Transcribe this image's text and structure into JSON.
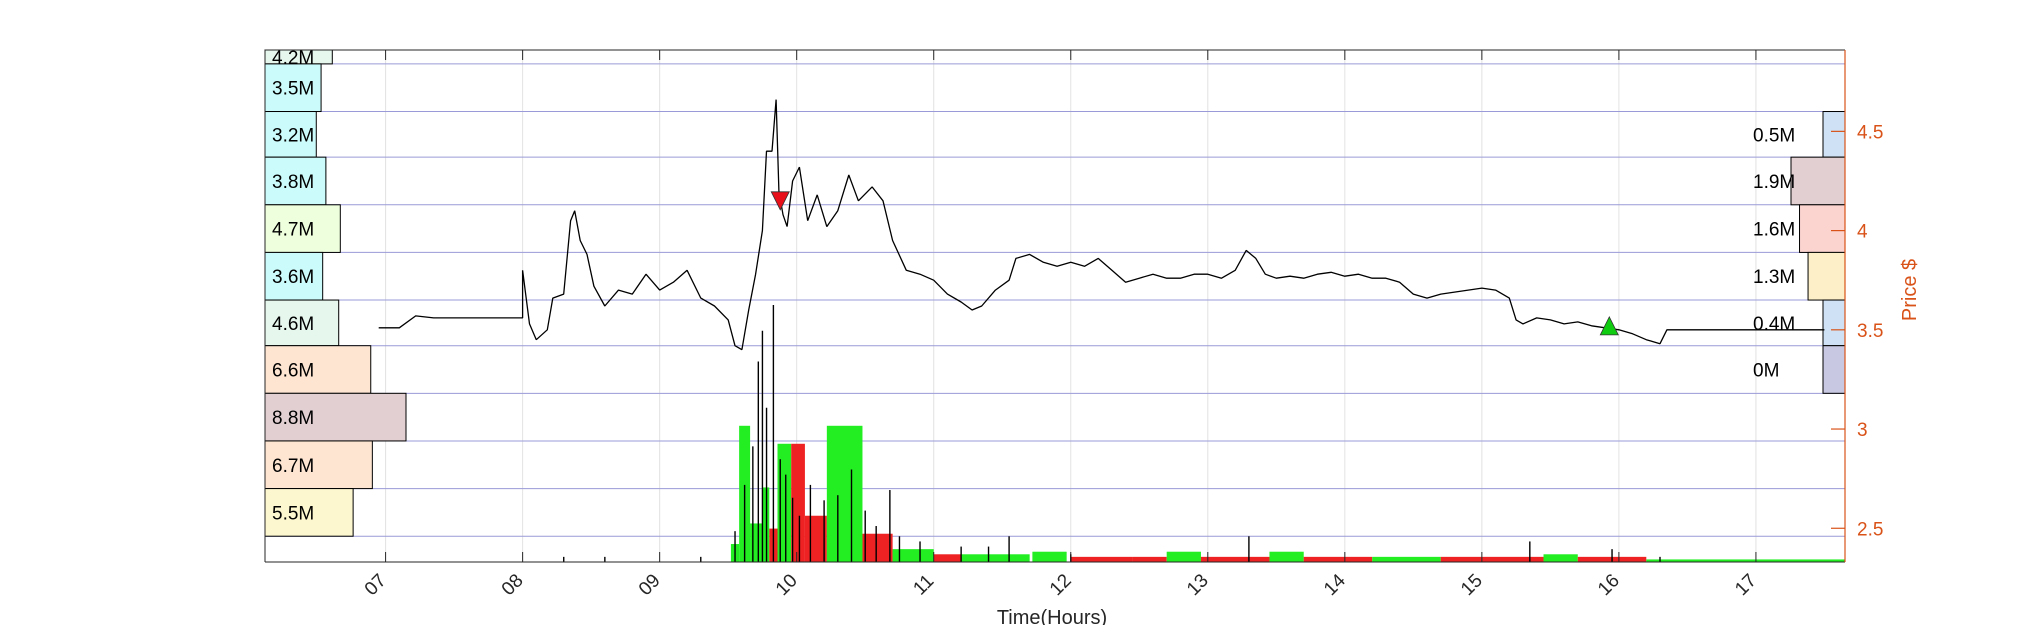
{
  "chart_data": {
    "type": "line",
    "xlabel": "Time(Hours)",
    "ylabel": "Price $",
    "xlim": [
      6.12,
      17.65
    ],
    "ylim": [
      2.33,
      4.91
    ],
    "x_ticks": [
      7,
      8,
      9,
      10,
      11,
      12,
      13,
      14,
      15,
      16,
      17
    ],
    "x_tick_labels": [
      "07",
      "08",
      "09",
      "10",
      "11",
      "12",
      "13",
      "14",
      "15",
      "16",
      "17"
    ],
    "y_ticks": [
      2.5,
      3,
      3.5,
      4,
      4.5
    ],
    "y_tick_labels": [
      "2.5",
      "3",
      "3.5",
      "4",
      "4.5"
    ],
    "grid": true,
    "price_line": [
      [
        6.95,
        3.51
      ],
      [
        7.1,
        3.51
      ],
      [
        7.22,
        3.57
      ],
      [
        7.35,
        3.56
      ],
      [
        7.6,
        3.56
      ],
      [
        7.8,
        3.56
      ],
      [
        8.0,
        3.56
      ],
      [
        8.0,
        3.8
      ],
      [
        8.05,
        3.53
      ],
      [
        8.1,
        3.45
      ],
      [
        8.18,
        3.5
      ],
      [
        8.22,
        3.66
      ],
      [
        8.3,
        3.68
      ],
      [
        8.35,
        4.05
      ],
      [
        8.38,
        4.1
      ],
      [
        8.42,
        3.95
      ],
      [
        8.47,
        3.88
      ],
      [
        8.52,
        3.72
      ],
      [
        8.6,
        3.62
      ],
      [
        8.7,
        3.7
      ],
      [
        8.8,
        3.68
      ],
      [
        8.9,
        3.78
      ],
      [
        9.0,
        3.7
      ],
      [
        9.1,
        3.74
      ],
      [
        9.2,
        3.8
      ],
      [
        9.3,
        3.66
      ],
      [
        9.4,
        3.62
      ],
      [
        9.5,
        3.55
      ],
      [
        9.55,
        3.42
      ],
      [
        9.6,
        3.4
      ],
      [
        9.65,
        3.6
      ],
      [
        9.7,
        3.78
      ],
      [
        9.75,
        4.0
      ],
      [
        9.78,
        4.4
      ],
      [
        9.82,
        4.4
      ],
      [
        9.85,
        4.66
      ],
      [
        9.87,
        4.2
      ],
      [
        9.9,
        4.08
      ],
      [
        9.93,
        4.02
      ],
      [
        9.97,
        4.25
      ],
      [
        10.02,
        4.32
      ],
      [
        10.08,
        4.05
      ],
      [
        10.15,
        4.18
      ],
      [
        10.22,
        4.02
      ],
      [
        10.3,
        4.1
      ],
      [
        10.38,
        4.28
      ],
      [
        10.45,
        4.15
      ],
      [
        10.55,
        4.22
      ],
      [
        10.63,
        4.15
      ],
      [
        10.7,
        3.95
      ],
      [
        10.8,
        3.8
      ],
      [
        10.9,
        3.78
      ],
      [
        11.0,
        3.75
      ],
      [
        11.1,
        3.68
      ],
      [
        11.2,
        3.64
      ],
      [
        11.28,
        3.6
      ],
      [
        11.35,
        3.62
      ],
      [
        11.45,
        3.7
      ],
      [
        11.55,
        3.75
      ],
      [
        11.6,
        3.86
      ],
      [
        11.7,
        3.88
      ],
      [
        11.8,
        3.84
      ],
      [
        11.9,
        3.82
      ],
      [
        12.0,
        3.84
      ],
      [
        12.1,
        3.82
      ],
      [
        12.2,
        3.86
      ],
      [
        12.3,
        3.8
      ],
      [
        12.4,
        3.74
      ],
      [
        12.5,
        3.76
      ],
      [
        12.6,
        3.78
      ],
      [
        12.7,
        3.76
      ],
      [
        12.8,
        3.76
      ],
      [
        12.9,
        3.78
      ],
      [
        13.0,
        3.78
      ],
      [
        13.1,
        3.76
      ],
      [
        13.2,
        3.8
      ],
      [
        13.28,
        3.9
      ],
      [
        13.35,
        3.86
      ],
      [
        13.42,
        3.78
      ],
      [
        13.5,
        3.76
      ],
      [
        13.6,
        3.77
      ],
      [
        13.7,
        3.76
      ],
      [
        13.8,
        3.78
      ],
      [
        13.9,
        3.79
      ],
      [
        14.0,
        3.77
      ],
      [
        14.1,
        3.78
      ],
      [
        14.2,
        3.76
      ],
      [
        14.3,
        3.76
      ],
      [
        14.4,
        3.74
      ],
      [
        14.5,
        3.68
      ],
      [
        14.6,
        3.66
      ],
      [
        14.7,
        3.68
      ],
      [
        14.8,
        3.69
      ],
      [
        14.9,
        3.7
      ],
      [
        15.0,
        3.71
      ],
      [
        15.1,
        3.7
      ],
      [
        15.2,
        3.66
      ],
      [
        15.25,
        3.55
      ],
      [
        15.3,
        3.53
      ],
      [
        15.4,
        3.56
      ],
      [
        15.5,
        3.55
      ],
      [
        15.6,
        3.53
      ],
      [
        15.7,
        3.54
      ],
      [
        15.8,
        3.52
      ],
      [
        15.9,
        3.51
      ],
      [
        16.0,
        3.5
      ],
      [
        16.1,
        3.48
      ],
      [
        16.2,
        3.45
      ],
      [
        16.3,
        3.43
      ],
      [
        16.35,
        3.5
      ],
      [
        16.6,
        3.5
      ],
      [
        16.9,
        3.5
      ],
      [
        17.2,
        3.5
      ],
      [
        17.5,
        3.5
      ]
    ],
    "markers": [
      {
        "type": "sell",
        "x": 9.88,
        "y": 4.15,
        "color": "#e8101a"
      },
      {
        "type": "buy",
        "x": 15.93,
        "y": 3.52,
        "color": "#10cc10"
      }
    ],
    "volume_bars": [
      {
        "x0": 9.52,
        "x1": 9.58,
        "h": 0.07,
        "color": "#22ee22"
      },
      {
        "x0": 9.58,
        "x1": 9.66,
        "h": 0.53,
        "color": "#22ee22"
      },
      {
        "x0": 9.66,
        "x1": 9.75,
        "h": 0.15,
        "color": "#22ee22"
      },
      {
        "x0": 9.75,
        "x1": 9.8,
        "h": 0.29,
        "color": "#22ee22"
      },
      {
        "x0": 9.8,
        "x1": 9.86,
        "h": 0.13,
        "color": "#ee2222"
      },
      {
        "x0": 9.86,
        "x1": 9.96,
        "h": 0.46,
        "color": "#22ee22"
      },
      {
        "x0": 9.96,
        "x1": 10.06,
        "h": 0.46,
        "color": "#ee2222"
      },
      {
        "x0": 10.06,
        "x1": 10.22,
        "h": 0.18,
        "color": "#ee2222"
      },
      {
        "x0": 10.22,
        "x1": 10.48,
        "h": 0.53,
        "color": "#22ee22"
      },
      {
        "x0": 10.48,
        "x1": 10.7,
        "h": 0.11,
        "color": "#ee2222"
      },
      {
        "x0": 10.7,
        "x1": 11.0,
        "h": 0.05,
        "color": "#22ee22"
      },
      {
        "x0": 11.0,
        "x1": 11.2,
        "h": 0.03,
        "color": "#ee2222"
      },
      {
        "x0": 11.2,
        "x1": 11.7,
        "h": 0.03,
        "color": "#22ee22"
      },
      {
        "x0": 11.72,
        "x1": 11.97,
        "h": 0.04,
        "color": "#22ee22"
      },
      {
        "x0": 12.0,
        "x1": 12.45,
        "h": 0.02,
        "color": "#ee2222"
      },
      {
        "x0": 12.45,
        "x1": 12.7,
        "h": 0.02,
        "color": "#ee2222"
      },
      {
        "x0": 12.7,
        "x1": 12.95,
        "h": 0.04,
        "color": "#22ee22"
      },
      {
        "x0": 12.95,
        "x1": 13.45,
        "h": 0.02,
        "color": "#ee2222"
      },
      {
        "x0": 13.45,
        "x1": 13.7,
        "h": 0.04,
        "color": "#22ee22"
      },
      {
        "x0": 13.7,
        "x1": 14.2,
        "h": 0.02,
        "color": "#ee2222"
      },
      {
        "x0": 14.2,
        "x1": 14.7,
        "h": 0.02,
        "color": "#22ee22"
      },
      {
        "x0": 14.7,
        "x1": 15.45,
        "h": 0.02,
        "color": "#ee2222"
      },
      {
        "x0": 15.45,
        "x1": 15.7,
        "h": 0.03,
        "color": "#22ee22"
      },
      {
        "x0": 15.7,
        "x1": 16.2,
        "h": 0.02,
        "color": "#ee2222"
      },
      {
        "x0": 16.2,
        "x1": 17.65,
        "h": 0.01,
        "color": "#22ee22"
      }
    ],
    "volume_spikes": [
      [
        8.3,
        0.02
      ],
      [
        8.6,
        0.02
      ],
      [
        9.3,
        0.02
      ],
      [
        9.55,
        0.12
      ],
      [
        9.62,
        0.3
      ],
      [
        9.68,
        0.45
      ],
      [
        9.72,
        0.78
      ],
      [
        9.75,
        0.9
      ],
      [
        9.78,
        0.6
      ],
      [
        9.83,
        1.0
      ],
      [
        9.88,
        0.4
      ],
      [
        9.92,
        0.34
      ],
      [
        9.97,
        0.25
      ],
      [
        10.02,
        0.18
      ],
      [
        10.1,
        0.3
      ],
      [
        10.2,
        0.24
      ],
      [
        10.3,
        0.26
      ],
      [
        10.4,
        0.36
      ],
      [
        10.5,
        0.2
      ],
      [
        10.58,
        0.14
      ],
      [
        10.68,
        0.28
      ],
      [
        10.75,
        0.1
      ],
      [
        10.9,
        0.08
      ],
      [
        11.2,
        0.06
      ],
      [
        11.4,
        0.06
      ],
      [
        11.55,
        0.1
      ],
      [
        12.0,
        0.03
      ],
      [
        13.3,
        0.1
      ],
      [
        15.35,
        0.08
      ],
      [
        15.95,
        0.05
      ],
      [
        16.3,
        0.02
      ]
    ],
    "left_profile": [
      {
        "label": "4.2M",
        "y0": 4.84,
        "y1": 4.91,
        "v": 4.2,
        "color": "#e6f7ee"
      },
      {
        "label": "3.5M",
        "y0": 4.6,
        "y1": 4.84,
        "v": 3.5,
        "color": "#ccfbfb"
      },
      {
        "label": "3.2M",
        "y0": 4.37,
        "y1": 4.6,
        "v": 3.2,
        "color": "#ccfbfb"
      },
      {
        "label": "3.8M",
        "y0": 4.13,
        "y1": 4.37,
        "v": 3.8,
        "color": "#ccfbfb"
      },
      {
        "label": "4.7M",
        "y0": 3.89,
        "y1": 4.13,
        "v": 4.7,
        "color": "#eeffdd"
      },
      {
        "label": "3.6M",
        "y0": 3.65,
        "y1": 3.89,
        "v": 3.6,
        "color": "#ccfbfb"
      },
      {
        "label": "4.6M",
        "y0": 3.42,
        "y1": 3.65,
        "v": 4.6,
        "color": "#e6f7ee"
      },
      {
        "label": "6.6M",
        "y0": 3.18,
        "y1": 3.42,
        "v": 6.6,
        "color": "#fde5d2"
      },
      {
        "label": "8.8M",
        "y0": 2.94,
        "y1": 3.18,
        "v": 8.8,
        "color": "#e2cfd2"
      },
      {
        "label": "6.7M",
        "y0": 2.7,
        "y1": 2.94,
        "v": 6.7,
        "color": "#fde5d2"
      },
      {
        "label": "5.5M",
        "y0": 2.46,
        "y1": 2.7,
        "v": 5.5,
        "color": "#fdf7cf"
      }
    ],
    "right_profile": [
      {
        "label": "0.5M",
        "y0": 4.37,
        "y1": 4.6,
        "v": 0.5,
        "color": "#cfe1f5"
      },
      {
        "label": "1.9M",
        "y0": 4.13,
        "y1": 4.37,
        "v": 1.9,
        "color": "#e2cfd2"
      },
      {
        "label": "1.6M",
        "y0": 3.89,
        "y1": 4.13,
        "v": 1.6,
        "color": "#fbd3cf"
      },
      {
        "label": "1.3M",
        "y0": 3.65,
        "y1": 3.89,
        "v": 1.3,
        "color": "#fdf0c8"
      },
      {
        "label": "0.4M",
        "y0": 3.42,
        "y1": 3.65,
        "v": 0.4,
        "color": "#cfe1f5"
      },
      {
        "label": "0M",
        "y0": 3.18,
        "y1": 3.42,
        "v": 0.0,
        "color": "#c8c8e2"
      }
    ],
    "colors": {
      "price_axis": "#d95319",
      "grid_h": "#9a9ad8",
      "grid_v": "#e2e2e2",
      "price_line": "#000000"
    }
  }
}
